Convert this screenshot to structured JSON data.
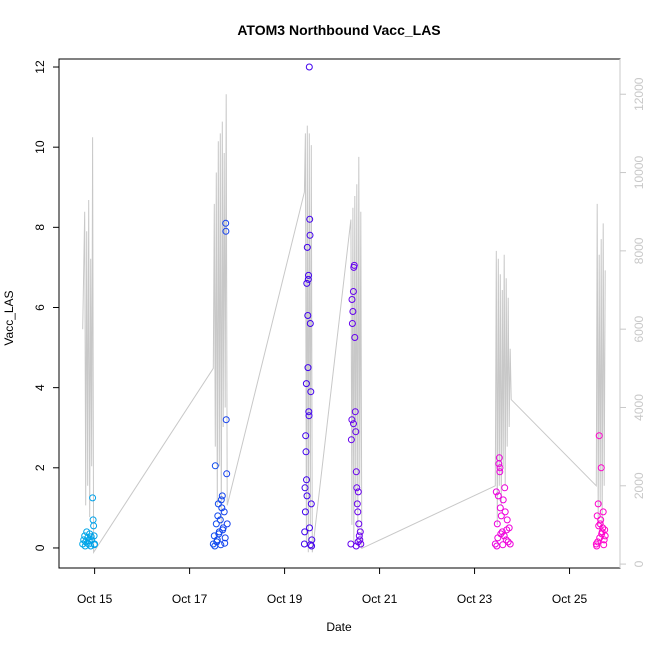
{
  "chart_data": {
    "type": "scatter",
    "title": "ATOM3 Northbound Vacc_LAS",
    "xlabel": "Date",
    "ylabel": "Vacc_LAS",
    "xlim": [
      "2023-10-14T06:00",
      "2023-10-26T01:30"
    ],
    "ylim": [
      -0.5,
      12.2
    ],
    "y_ticks": [
      0,
      2,
      4,
      6,
      8,
      10,
      12
    ],
    "x_ticks": [
      {
        "date": "2023-10-15",
        "label": "Oct 15"
      },
      {
        "date": "2023-10-17",
        "label": "Oct 17"
      },
      {
        "date": "2023-10-19",
        "label": "Oct 19"
      },
      {
        "date": "2023-10-21",
        "label": "Oct 21"
      },
      {
        "date": "2023-10-23",
        "label": "Oct 23"
      },
      {
        "date": "2023-10-25",
        "label": "Oct 25"
      }
    ],
    "y2lim": [
      -100,
      12900
    ],
    "y2_ticks": [
      0,
      2000,
      4000,
      6000,
      8000,
      10000,
      12000
    ],
    "grid": false,
    "legend": "none",
    "secondary_line_color": "#c8c8c8",
    "point_color_gradient": [
      "#00a8e8",
      "#0066ee",
      "#3300ee",
      "#8800ee",
      "#ee00dd",
      "#ff00cc"
    ],
    "line_series": [
      [
        "2023-10-14T18:00",
        6000
      ],
      [
        "2023-10-14T19:00",
        9000
      ],
      [
        "2023-10-14T19:30",
        1500
      ],
      [
        "2023-10-14T20:00",
        8500
      ],
      [
        "2023-10-14T20:30",
        2000
      ],
      [
        "2023-10-14T21:00",
        9300
      ],
      [
        "2023-10-14T21:30",
        1200
      ],
      [
        "2023-10-14T22:00",
        7800
      ],
      [
        "2023-10-14T22:30",
        2500
      ],
      [
        "2023-10-14T23:00",
        10900
      ],
      [
        "2023-10-14T23:30",
        300
      ],
      [
        "2023-10-17T12:00",
        5000
      ],
      [
        "2023-10-17T12:30",
        9200
      ],
      [
        "2023-10-17T13:00",
        3000
      ],
      [
        "2023-10-17T13:30",
        10000
      ],
      [
        "2023-10-17T14:00",
        1500
      ],
      [
        "2023-10-17T14:30",
        10800
      ],
      [
        "2023-10-17T15:00",
        2500
      ],
      [
        "2023-10-17T15:30",
        11000
      ],
      [
        "2023-10-17T16:00",
        1000
      ],
      [
        "2023-10-17T16:30",
        11300
      ],
      [
        "2023-10-17T17:00",
        3500
      ],
      [
        "2023-10-17T17:30",
        10500
      ],
      [
        "2023-10-17T18:00",
        4000
      ],
      [
        "2023-10-17T18:30",
        12000
      ],
      [
        "2023-10-17T19:00",
        1500
      ],
      [
        "2023-10-19T10:00",
        9500
      ],
      [
        "2023-10-19T10:30",
        11000
      ],
      [
        "2023-10-19T11:00",
        500
      ],
      [
        "2023-10-19T11:30",
        11200
      ],
      [
        "2023-10-19T12:00",
        300
      ],
      [
        "2023-10-19T12:30",
        11000
      ],
      [
        "2023-10-19T13:00",
        1000
      ],
      [
        "2023-10-19T13:30",
        10700
      ],
      [
        "2023-10-19T14:00",
        300
      ],
      [
        "2023-10-20T09:30",
        8800
      ],
      [
        "2023-10-20T10:00",
        1000
      ],
      [
        "2023-10-20T10:30",
        9100
      ],
      [
        "2023-10-20T11:00",
        500
      ],
      [
        "2023-10-20T11:30",
        9400
      ],
      [
        "2023-10-20T12:00",
        1500
      ],
      [
        "2023-10-20T12:30",
        9700
      ],
      [
        "2023-10-20T13:00",
        800
      ],
      [
        "2023-10-20T13:30",
        10400
      ],
      [
        "2023-10-20T14:00",
        2000
      ],
      [
        "2023-10-20T14:30",
        9000
      ],
      [
        "2023-10-20T15:00",
        400
      ],
      [
        "2023-10-23T10:30",
        2000
      ],
      [
        "2023-10-23T11:00",
        8000
      ],
      [
        "2023-10-23T11:30",
        1000
      ],
      [
        "2023-10-23T12:00",
        7800
      ],
      [
        "2023-10-23T12:30",
        2000
      ],
      [
        "2023-10-23T13:00",
        7400
      ],
      [
        "2023-10-23T13:30",
        1500
      ],
      [
        "2023-10-23T14:00",
        7000
      ],
      [
        "2023-10-23T14:30",
        2500
      ],
      [
        "2023-10-23T15:00",
        7900
      ],
      [
        "2023-10-23T15:30",
        2000
      ],
      [
        "2023-10-23T16:00",
        7300
      ],
      [
        "2023-10-23T16:30",
        3000
      ],
      [
        "2023-10-23T17:00",
        6800
      ],
      [
        "2023-10-23T17:30",
        3500
      ],
      [
        "2023-10-23T18:00",
        5500
      ],
      [
        "2023-10-23T18:30",
        4200
      ],
      [
        "2023-10-25T13:30",
        2000
      ],
      [
        "2023-10-25T14:00",
        9200
      ],
      [
        "2023-10-25T14:30",
        1000
      ],
      [
        "2023-10-25T15:00",
        7900
      ],
      [
        "2023-10-25T15:30",
        1500
      ],
      [
        "2023-10-25T16:00",
        8300
      ],
      [
        "2023-10-25T16:30",
        1000
      ],
      [
        "2023-10-25T17:00",
        8700
      ],
      [
        "2023-10-25T17:30",
        2000
      ],
      [
        "2023-10-25T18:00",
        7500
      ]
    ],
    "points": [
      [
        "2023-10-14T18:00",
        0.1
      ],
      [
        "2023-10-14T18:30",
        0.2
      ],
      [
        "2023-10-14T19:00",
        0.3
      ],
      [
        "2023-10-14T19:30",
        0.15
      ],
      [
        "2023-10-14T20:00",
        0.4
      ],
      [
        "2023-10-14T20:30",
        0.25
      ],
      [
        "2023-10-14T21:00",
        0.1
      ],
      [
        "2023-10-14T21:30",
        0.35
      ],
      [
        "2023-10-14T22:00",
        0.05
      ],
      [
        "2023-10-14T22:30",
        0.2
      ],
      [
        "2023-10-14T23:00",
        1.25
      ],
      [
        "2023-10-14T23:15",
        0.7
      ],
      [
        "2023-10-14T23:30",
        0.55
      ],
      [
        "2023-10-14T23:45",
        0.3
      ],
      [
        "2023-10-15T00:00",
        0.1
      ],
      [
        "2023-10-14T19:15",
        0.05
      ],
      [
        "2023-10-14T20:15",
        0.12
      ],
      [
        "2023-10-14T21:15",
        0.18
      ],
      [
        "2023-10-14T22:15",
        0.28
      ],
      [
        "2023-10-14T23:50",
        0.08
      ],
      [
        "2023-10-17T12:00",
        0.1
      ],
      [
        "2023-10-17T12:30",
        0.3
      ],
      [
        "2023-10-17T13:00",
        2.05
      ],
      [
        "2023-10-17T13:30",
        0.6
      ],
      [
        "2023-10-17T14:00",
        0.2
      ],
      [
        "2023-10-17T14:30",
        1.1
      ],
      [
        "2023-10-17T15:00",
        0.4
      ],
      [
        "2023-10-17T15:30",
        0.7
      ],
      [
        "2023-10-17T16:00",
        1.2
      ],
      [
        "2023-10-17T16:30",
        1.3
      ],
      [
        "2023-10-17T17:00",
        0.5
      ],
      [
        "2023-10-17T17:30",
        0.9
      ],
      [
        "2023-10-17T18:00",
        0.25
      ],
      [
        "2023-10-17T18:15",
        8.1
      ],
      [
        "2023-10-17T18:20",
        7.9
      ],
      [
        "2023-10-17T18:30",
        3.2
      ],
      [
        "2023-10-17T18:45",
        1.85
      ],
      [
        "2023-10-17T19:00",
        0.6
      ],
      [
        "2023-10-17T12:45",
        0.05
      ],
      [
        "2023-10-17T13:45",
        0.15
      ],
      [
        "2023-10-17T14:45",
        0.35
      ],
      [
        "2023-10-17T15:45",
        0.08
      ],
      [
        "2023-10-17T16:45",
        0.45
      ],
      [
        "2023-10-17T17:45",
        0.12
      ],
      [
        "2023-10-17T14:15",
        0.8
      ],
      [
        "2023-10-17T16:15",
        1.0
      ],
      [
        "2023-10-19T10:00",
        0.1
      ],
      [
        "2023-10-19T10:20",
        1.5
      ],
      [
        "2023-10-19T10:40",
        2.8
      ],
      [
        "2023-10-19T11:00",
        4.1
      ],
      [
        "2023-10-19T11:15",
        6.6
      ],
      [
        "2023-10-19T11:30",
        7.5
      ],
      [
        "2023-10-19T11:45",
        5.8
      ],
      [
        "2023-10-19T12:00",
        6.7
      ],
      [
        "2023-10-19T12:15",
        3.4
      ],
      [
        "2023-10-19T12:30",
        12.0
      ],
      [
        "2023-10-19T12:40",
        8.2
      ],
      [
        "2023-10-19T12:50",
        7.8
      ],
      [
        "2023-10-19T13:00",
        5.6
      ],
      [
        "2023-10-19T13:15",
        3.9
      ],
      [
        "2023-10-19T13:30",
        1.1
      ],
      [
        "2023-10-19T13:45",
        0.2
      ],
      [
        "2023-10-19T10:10",
        0.4
      ],
      [
        "2023-10-19T10:50",
        2.4
      ],
      [
        "2023-10-19T11:20",
        1.3
      ],
      [
        "2023-10-19T11:50",
        4.5
      ],
      [
        "2023-10-19T12:05",
        6.8
      ],
      [
        "2023-10-19T12:20",
        3.3
      ],
      [
        "2023-10-19T12:35",
        0.5
      ],
      [
        "2023-10-19T13:05",
        0.08
      ],
      [
        "2023-10-19T13:40",
        0.05
      ],
      [
        "2023-10-19T11:05",
        1.7
      ],
      [
        "2023-10-19T10:30",
        0.9
      ],
      [
        "2023-10-20T09:30",
        0.1
      ],
      [
        "2023-10-20T10:00",
        3.2
      ],
      [
        "2023-10-20T10:15",
        5.6
      ],
      [
        "2023-10-20T10:30",
        5.9
      ],
      [
        "2023-10-20T10:45",
        6.4
      ],
      [
        "2023-10-20T11:00",
        7.0
      ],
      [
        "2023-10-20T11:15",
        7.05
      ],
      [
        "2023-10-20T11:30",
        5.25
      ],
      [
        "2023-10-20T11:45",
        3.4
      ],
      [
        "2023-10-20T12:00",
        2.9
      ],
      [
        "2023-10-20T12:15",
        1.9
      ],
      [
        "2023-10-20T12:30",
        1.5
      ],
      [
        "2023-10-20T12:45",
        1.1
      ],
      [
        "2023-10-20T13:00",
        0.9
      ],
      [
        "2023-10-20T13:15",
        1.4
      ],
      [
        "2023-10-20T13:30",
        0.6
      ],
      [
        "2023-10-20T13:45",
        0.3
      ],
      [
        "2023-10-20T14:00",
        0.2
      ],
      [
        "2023-10-20T14:30",
        0.1
      ],
      [
        "2023-10-20T09:45",
        2.7
      ],
      [
        "2023-10-20T10:05",
        6.2
      ],
      [
        "2023-10-20T10:50",
        3.1
      ],
      [
        "2023-10-20T12:10",
        0.05
      ],
      [
        "2023-10-20T13:10",
        0.15
      ],
      [
        "2023-10-20T14:15",
        0.4
      ],
      [
        "2023-10-23T10:30",
        0.1
      ],
      [
        "2023-10-23T11:00",
        1.4
      ],
      [
        "2023-10-23T11:30",
        0.6
      ],
      [
        "2023-10-23T12:00",
        1.3
      ],
      [
        "2023-10-23T12:15",
        2.1
      ],
      [
        "2023-10-23T12:30",
        2.25
      ],
      [
        "2023-10-23T12:45",
        1.9
      ],
      [
        "2023-10-23T13:00",
        1.0
      ],
      [
        "2023-10-23T13:30",
        0.8
      ],
      [
        "2023-10-23T14:00",
        0.4
      ],
      [
        "2023-10-23T14:30",
        1.2
      ],
      [
        "2023-10-23T15:00",
        0.3
      ],
      [
        "2023-10-23T15:30",
        0.9
      ],
      [
        "2023-10-23T16:00",
        0.2
      ],
      [
        "2023-10-23T16:30",
        0.7
      ],
      [
        "2023-10-23T17:00",
        0.15
      ],
      [
        "2023-10-23T17:30",
        0.5
      ],
      [
        "2023-10-23T18:00",
        0.1
      ],
      [
        "2023-10-23T11:15",
        0.05
      ],
      [
        "2023-10-23T11:45",
        0.25
      ],
      [
        "2023-10-23T12:50",
        2.0
      ],
      [
        "2023-10-23T13:15",
        0.35
      ],
      [
        "2023-10-23T14:15",
        0.08
      ],
      [
        "2023-10-23T15:15",
        1.5
      ],
      [
        "2023-10-23T16:15",
        0.45
      ],
      [
        "2023-10-25T13:30",
        0.1
      ],
      [
        "2023-10-25T14:00",
        0.8
      ],
      [
        "2023-10-25T14:30",
        1.1
      ],
      [
        "2023-10-25T15:00",
        2.8
      ],
      [
        "2023-10-25T15:30",
        0.6
      ],
      [
        "2023-10-25T16:00",
        2.0
      ],
      [
        "2023-10-25T16:30",
        0.4
      ],
      [
        "2023-10-25T17:00",
        0.9
      ],
      [
        "2023-10-25T17:30",
        0.2
      ],
      [
        "2023-10-25T18:00",
        0.3
      ],
      [
        "2023-10-25T13:45",
        0.05
      ],
      [
        "2023-10-25T14:15",
        0.15
      ],
      [
        "2023-10-25T14:45",
        0.55
      ],
      [
        "2023-10-25T15:15",
        0.25
      ],
      [
        "2023-10-25T15:45",
        0.7
      ],
      [
        "2023-10-25T16:15",
        0.35
      ],
      [
        "2023-10-25T16:45",
        0.5
      ],
      [
        "2023-10-25T17:15",
        0.08
      ],
      [
        "2023-10-25T17:45",
        0.45
      ]
    ]
  }
}
